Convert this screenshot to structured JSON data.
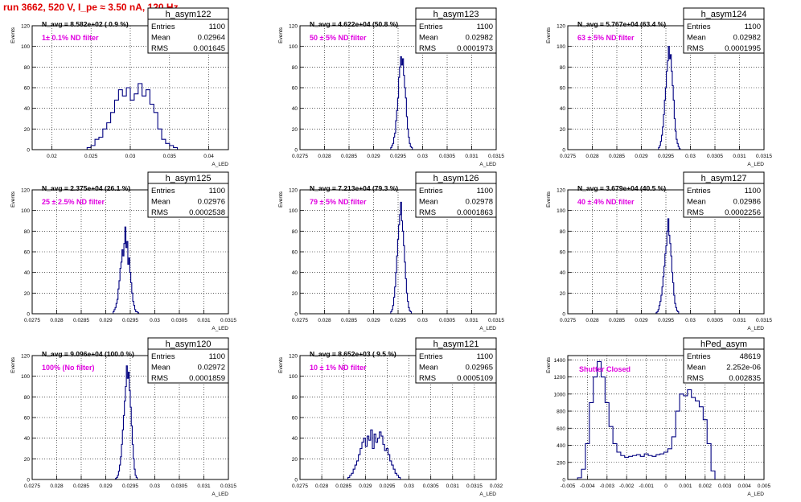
{
  "header": {
    "title": "run 3662,   520 V, I_pe ≈ 3.50 nA, 120 Hz"
  },
  "colors": {
    "histogram": "#000080",
    "filter_label": "#e000e0",
    "title": "#e00000",
    "axis": "#000000"
  },
  "chart_data": [
    {
      "type": "histogram",
      "name": "h_asym122",
      "stats": {
        "entries": "1100",
        "mean": "0.02964",
        "rms": "0.001645"
      },
      "nav_label": "N_avg = 8.582e+02 ( 0.9 %)",
      "filter_label": "1± 0.1% ND filter",
      "xlabel": "A_LED",
      "ylabel": "Events",
      "xlim": [
        0.0175,
        0.0425
      ],
      "ylim": [
        0,
        120
      ],
      "xticks": [
        0.02,
        0.025,
        0.03,
        0.035,
        0.04
      ],
      "xtick_labels": [
        "0.02",
        "0.025",
        "0.03",
        "0.035",
        "0.04"
      ],
      "yticks": [
        0,
        20,
        40,
        60,
        80,
        100,
        120
      ],
      "bins": {
        "start": 0.0245,
        "width": 0.0005,
        "counts": [
          2,
          4,
          10,
          12,
          20,
          26,
          36,
          48,
          58,
          52,
          60,
          48,
          54,
          64,
          52,
          58,
          44,
          36,
          20,
          10,
          6,
          4,
          2
        ]
      }
    },
    {
      "type": "histogram",
      "name": "h_asym123",
      "stats": {
        "entries": "1100",
        "mean": "0.02982",
        "rms": "0.0001973"
      },
      "nav_label": "N_avg = 4.622e+04 (50.8 %)",
      "filter_label": "50 ± 5% ND filter",
      "xlabel": "A_LED",
      "ylabel": "Events",
      "xlim": [
        0.0275,
        0.0315
      ],
      "ylim": [
        0,
        120
      ],
      "xticks": [
        0.0275,
        0.028,
        0.0285,
        0.029,
        0.0295,
        0.03,
        0.0305,
        0.031,
        0.0315
      ],
      "xtick_labels": [
        "0.0275",
        "0.028",
        "0.0285",
        "0.029",
        "0.0295",
        "0.03",
        "0.0305",
        "0.031",
        "0.0315"
      ],
      "yticks": [
        0,
        20,
        40,
        60,
        80,
        100,
        120
      ],
      "bins": {
        "start": 0.02935,
        "width": 2e-05,
        "counts": [
          2,
          4,
          6,
          12,
          16,
          28,
          38,
          50,
          70,
          80,
          90,
          82,
          88,
          72,
          60,
          50,
          32,
          20,
          12,
          6,
          3,
          2
        ]
      }
    },
    {
      "type": "histogram",
      "name": "h_asym124",
      "stats": {
        "entries": "1100",
        "mean": "0.02982",
        "rms": "0.0001995"
      },
      "nav_label": "N_avg = 5.767e+04 (63.4 %)",
      "filter_label": "63 ± 5% ND filter",
      "xlabel": "A_LED",
      "ylabel": "Events",
      "xlim": [
        0.0275,
        0.0315
      ],
      "ylim": [
        0,
        120
      ],
      "xticks": [
        0.0275,
        0.028,
        0.0285,
        0.029,
        0.0295,
        0.03,
        0.0305,
        0.031,
        0.0315
      ],
      "xtick_labels": [
        "0.0275",
        "0.028",
        "0.0285",
        "0.029",
        "0.0295",
        "0.03",
        "0.0305",
        "0.031",
        "0.0315"
      ],
      "yticks": [
        0,
        20,
        40,
        60,
        80,
        100,
        120
      ],
      "bins": {
        "start": 0.02935,
        "width": 2e-05,
        "counts": [
          2,
          4,
          8,
          14,
          22,
          34,
          48,
          60,
          76,
          86,
          100,
          88,
          92,
          76,
          62,
          48,
          30,
          18,
          10,
          6,
          3,
          1
        ]
      }
    },
    {
      "type": "histogram",
      "name": "h_asym125",
      "stats": {
        "entries": "1100",
        "mean": "0.02976",
        "rms": "0.0002538"
      },
      "nav_label": "N_avg = 2.375e+04 (26.1 %)",
      "filter_label": "25 ± 2.5% ND filter",
      "xlabel": "A_LED",
      "ylabel": "Events",
      "xlim": [
        0.0275,
        0.0315
      ],
      "ylim": [
        0,
        120
      ],
      "xticks": [
        0.0275,
        0.028,
        0.0285,
        0.029,
        0.0295,
        0.03,
        0.0305,
        0.031,
        0.0315
      ],
      "xtick_labels": [
        "0.0275",
        "0.028",
        "0.0285",
        "0.029",
        "0.0295",
        "0.03",
        "0.0305",
        "0.031",
        "0.0315"
      ],
      "yticks": [
        0,
        20,
        40,
        60,
        80,
        100,
        120
      ],
      "bins": {
        "start": 0.02915,
        "width": 2e-05,
        "counts": [
          2,
          4,
          6,
          10,
          14,
          24,
          32,
          44,
          50,
          62,
          56,
          68,
          84,
          64,
          70,
          48,
          54,
          40,
          30,
          20,
          12,
          8,
          4,
          2,
          2,
          1
        ]
      }
    },
    {
      "type": "histogram",
      "name": "h_asym126",
      "stats": {
        "entries": "1100",
        "mean": "0.02978",
        "rms": "0.0001863"
      },
      "nav_label": "N_avg = 7.213e+04 (79.3 %)",
      "filter_label": "79 ± 5% ND filter",
      "xlabel": "A_LED",
      "ylabel": "Events",
      "xlim": [
        0.0275,
        0.0315
      ],
      "ylim": [
        0,
        120
      ],
      "xticks": [
        0.0275,
        0.028,
        0.0285,
        0.029,
        0.0295,
        0.03,
        0.0305,
        0.031,
        0.0315
      ],
      "xtick_labels": [
        "0.0275",
        "0.028",
        "0.0285",
        "0.029",
        "0.0295",
        "0.03",
        "0.0305",
        "0.031",
        "0.0315"
      ],
      "yticks": [
        0,
        20,
        40,
        60,
        80,
        100,
        120
      ],
      "bins": {
        "start": 0.02935,
        "width": 2e-05,
        "counts": [
          2,
          4,
          8,
          16,
          26,
          40,
          56,
          72,
          86,
          96,
          108,
          90,
          80,
          66,
          50,
          34,
          20,
          12,
          6,
          3,
          2
        ]
      }
    },
    {
      "type": "histogram",
      "name": "h_asym127",
      "stats": {
        "entries": "1100",
        "mean": "0.02986",
        "rms": "0.0002256"
      },
      "nav_label": "N_avg = 3.679e+04 (40.5 %)",
      "filter_label": "40 ± 4% ND filter",
      "xlabel": "A_LED",
      "ylabel": "Events",
      "xlim": [
        0.0275,
        0.0315
      ],
      "ylim": [
        0,
        120
      ],
      "xticks": [
        0.0275,
        0.028,
        0.0285,
        0.029,
        0.0295,
        0.03,
        0.0305,
        0.031,
        0.0315
      ],
      "xtick_labels": [
        "0.0275",
        "0.028",
        "0.0285",
        "0.029",
        "0.0295",
        "0.03",
        "0.0305",
        "0.031",
        "0.0315"
      ],
      "yticks": [
        0,
        20,
        40,
        60,
        80,
        100,
        120
      ],
      "bins": {
        "start": 0.0293,
        "width": 2e-05,
        "counts": [
          1,
          2,
          4,
          8,
          12,
          18,
          26,
          36,
          46,
          58,
          66,
          80,
          92,
          76,
          68,
          56,
          40,
          30,
          18,
          10,
          6,
          3,
          2
        ]
      }
    },
    {
      "type": "histogram",
      "name": "h_asym120",
      "stats": {
        "entries": "1100",
        "mean": "0.02972",
        "rms": "0.0001859"
      },
      "nav_label": "N_avg = 9.096e+04 (100.0 %)",
      "filter_label": "100% (No filter)",
      "xlabel": "A_LED",
      "ylabel": "Events",
      "xlim": [
        0.0275,
        0.0315
      ],
      "ylim": [
        0,
        120
      ],
      "xticks": [
        0.0275,
        0.028,
        0.0285,
        0.029,
        0.0295,
        0.03,
        0.0305,
        0.031,
        0.0315
      ],
      "xtick_labels": [
        "0.0275",
        "0.028",
        "0.0285",
        "0.029",
        "0.0295",
        "0.03",
        "0.0305",
        "0.031",
        "0.0315"
      ],
      "yticks": [
        0,
        20,
        40,
        60,
        80,
        100,
        120
      ],
      "bins": {
        "start": 0.0292,
        "width": 2e-05,
        "counts": [
          1,
          2,
          4,
          8,
          14,
          22,
          34,
          48,
          62,
          76,
          90,
          110,
          98,
          104,
          86,
          70,
          52,
          34,
          20,
          10,
          4,
          2
        ]
      }
    },
    {
      "type": "histogram",
      "name": "h_asym121",
      "stats": {
        "entries": "1100",
        "mean": "0.02965",
        "rms": "0.0005109"
      },
      "nav_label": "N_avg = 8.652e+03 ( 9.5 %)",
      "filter_label": "10 ± 1% ND filter",
      "xlabel": "A_LED",
      "ylabel": "Events",
      "xlim": [
        0.0275,
        0.032
      ],
      "ylim": [
        0,
        120
      ],
      "xticks": [
        0.0275,
        0.028,
        0.0285,
        0.029,
        0.0295,
        0.03,
        0.0305,
        0.031,
        0.0315,
        0.032
      ],
      "xtick_labels": [
        "0.0275",
        "0.028",
        "0.0285",
        "0.029",
        "0.0295",
        "0.03",
        "0.0305",
        "0.031",
        "0.0315",
        "0.032"
      ],
      "yticks": [
        0,
        20,
        40,
        60,
        80,
        100,
        120
      ],
      "bins": {
        "start": 0.0286,
        "width": 4e-05,
        "counts": [
          2,
          4,
          6,
          10,
          14,
          18,
          24,
          30,
          36,
          40,
          32,
          42,
          38,
          48,
          30,
          44,
          36,
          40,
          46,
          42,
          34,
          28,
          30,
          24,
          18,
          14,
          10,
          6,
          4,
          2
        ]
      }
    },
    {
      "type": "histogram",
      "name": "hPed_asym",
      "stats": {
        "entries": "48619",
        "mean": "2.252e-06",
        "rms": "0.002835"
      },
      "filter_label": "Shutter Closed",
      "xlabel": "A_LED",
      "ylabel": "Events",
      "xlim": [
        -0.005,
        0.005
      ],
      "ylim": [
        0,
        1450
      ],
      "xticks": [
        -0.005,
        -0.004,
        -0.003,
        -0.002,
        -0.001,
        0,
        0.001,
        0.002,
        0.003,
        0.004,
        0.005
      ],
      "xtick_labels": [
        "-0.005",
        "-0.004",
        "-0.003",
        "-0.002",
        "-0.001",
        "0",
        "0.001",
        "0.002",
        "0.003",
        "0.004",
        "0.005"
      ],
      "yticks": [
        0,
        200,
        400,
        600,
        800,
        1000,
        1200,
        1400
      ],
      "bins": {
        "start": -0.0045,
        "width": 0.0002,
        "counts": [
          20,
          120,
          420,
          900,
          1200,
          1380,
          1200,
          900,
          620,
          420,
          320,
          280,
          260,
          270,
          280,
          290,
          270,
          300,
          280,
          270,
          290,
          300,
          320,
          360,
          500,
          800,
          1000,
          980,
          1050,
          960,
          920,
          850,
          700,
          420,
          100
        ]
      }
    }
  ]
}
